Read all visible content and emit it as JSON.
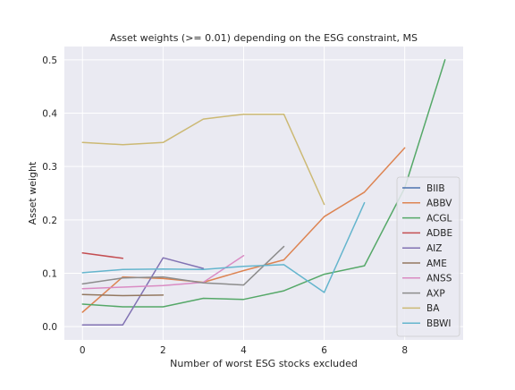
{
  "chart_data": {
    "type": "line",
    "title": "Asset weights (>= 0.01) depending on the ESG constraint, MS",
    "xlabel": "Number of worst ESG stocks excluded",
    "ylabel": "Asset weight",
    "xlim": [
      -0.45,
      9.45
    ],
    "ylim": [
      -0.025,
      0.525
    ],
    "xticks": [
      0,
      2,
      4,
      6,
      8
    ],
    "yticks": [
      0.0,
      0.1,
      0.2,
      0.3,
      0.4,
      0.5
    ],
    "xtick_labels": [
      "0",
      "2",
      "4",
      "6",
      "8"
    ],
    "ytick_labels": [
      "0.0",
      "0.1",
      "0.2",
      "0.3",
      "0.4",
      "0.5"
    ],
    "grid": true,
    "legend_position": "lower right",
    "series": [
      {
        "name": "BIIB",
        "color": "#4c72b0",
        "x": [],
        "y": []
      },
      {
        "name": "ABBV",
        "color": "#dd8452",
        "x": [
          0,
          1,
          2,
          3,
          4,
          5,
          6,
          7,
          8
        ],
        "y": [
          0.027,
          0.093,
          0.09,
          0.083,
          0.105,
          0.125,
          0.206,
          0.252,
          0.335
        ]
      },
      {
        "name": "ACGL",
        "color": "#55a868",
        "x": [
          0,
          1,
          2,
          3,
          4,
          5,
          6,
          7,
          8,
          9
        ],
        "y": [
          0.042,
          0.037,
          0.037,
          0.053,
          0.051,
          0.067,
          0.098,
          0.114,
          0.26,
          0.5
        ]
      },
      {
        "name": "ADBE",
        "color": "#c44e52",
        "x": [
          0,
          1
        ],
        "y": [
          0.138,
          0.128
        ]
      },
      {
        "name": "AIZ",
        "color": "#8172b3",
        "x": [
          0,
          1,
          2,
          3
        ],
        "y": [
          0.003,
          0.003,
          0.129,
          0.109
        ]
      },
      {
        "name": "AME",
        "color": "#937860",
        "x": [
          0,
          1,
          2
        ],
        "y": [
          0.06,
          0.058,
          0.059
        ]
      },
      {
        "name": "ANSS",
        "color": "#da8bc3",
        "x": [
          0,
          1,
          2,
          3,
          4
        ],
        "y": [
          0.071,
          0.074,
          0.077,
          0.083,
          0.133
        ]
      },
      {
        "name": "AXP",
        "color": "#8c8c8c",
        "x": [
          0,
          1,
          2,
          3,
          4,
          5
        ],
        "y": [
          0.08,
          0.091,
          0.093,
          0.082,
          0.078,
          0.15
        ]
      },
      {
        "name": "BA",
        "color": "#ccb974",
        "x": [
          0,
          1,
          2,
          3,
          4,
          5,
          6
        ],
        "y": [
          0.345,
          0.341,
          0.345,
          0.389,
          0.398,
          0.398,
          0.229
        ]
      },
      {
        "name": "BBWI",
        "color": "#64b5cd",
        "x": [
          0,
          1,
          2,
          3,
          4,
          5,
          6,
          7
        ],
        "y": [
          0.101,
          0.107,
          0.108,
          0.107,
          0.113,
          0.116,
          0.064,
          0.232
        ]
      }
    ]
  }
}
